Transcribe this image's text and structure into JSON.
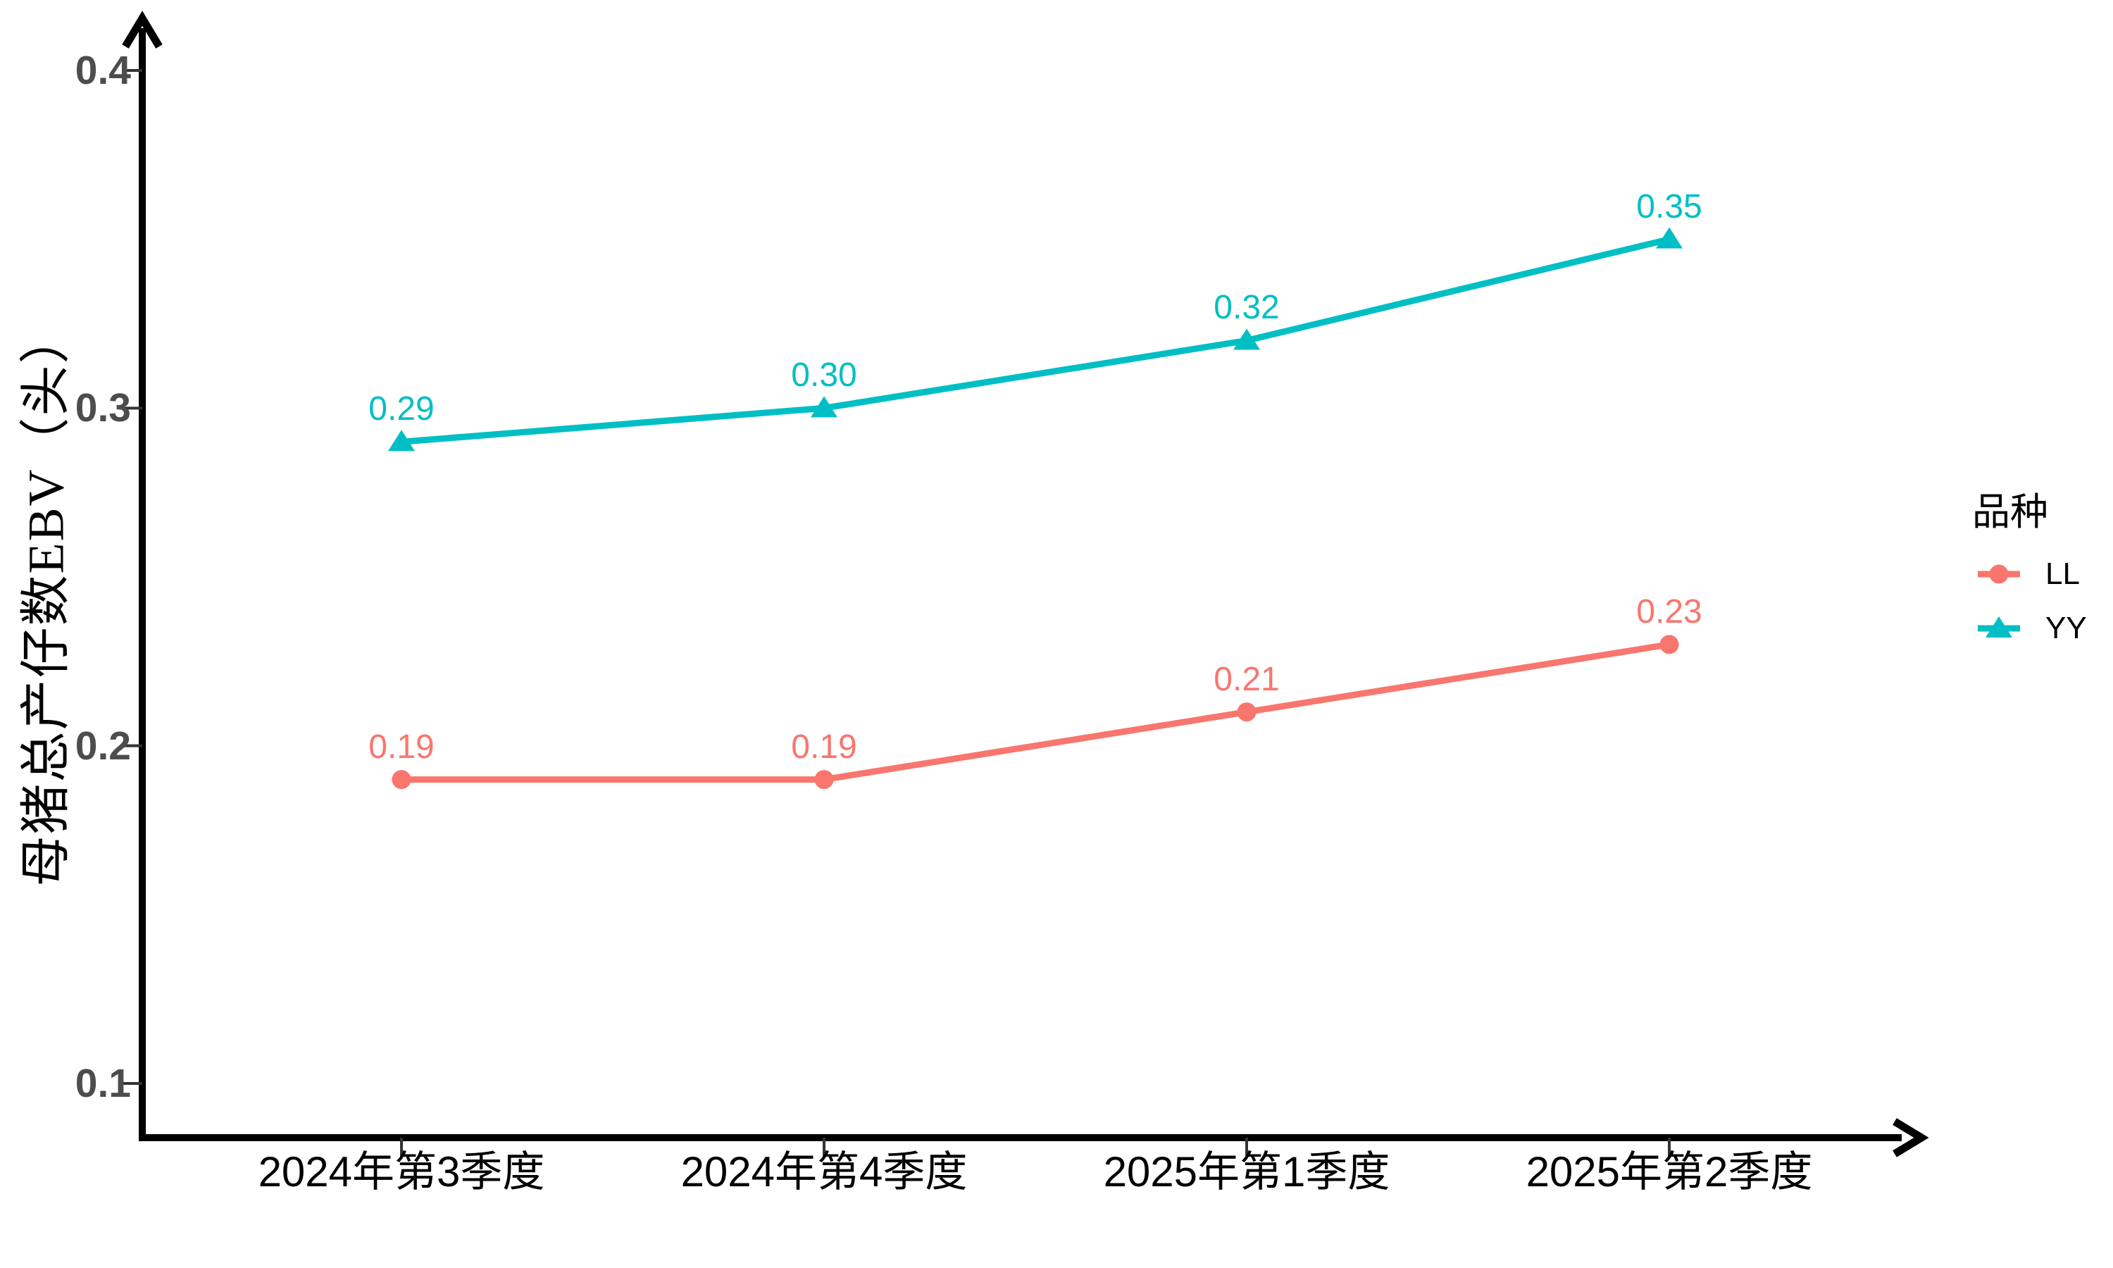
{
  "chart_data": {
    "type": "line",
    "title": "",
    "xlabel": "",
    "ylabel": "母猪总产仔数EBV（头）",
    "categories": [
      "2024年第3季度",
      "2024年第4季度",
      "2025年第1季度",
      "2025年第2季度"
    ],
    "series": [
      {
        "name": "LL",
        "color": "#F8766D",
        "marker": "circle",
        "values": [
          0.19,
          0.19,
          0.21,
          0.23
        ],
        "labels": [
          "0.19",
          "0.19",
          "0.21",
          "0.23"
        ]
      },
      {
        "name": "YY",
        "color": "#00BFC4",
        "marker": "triangle",
        "values": [
          0.29,
          0.3,
          0.32,
          0.35
        ],
        "labels": [
          "0.29",
          "0.30",
          "0.32",
          "0.35"
        ]
      }
    ],
    "y_ticks": [
      {
        "label": "0.4",
        "value": 0.4
      },
      {
        "label": "0.3",
        "value": 0.3
      },
      {
        "label": "0.2",
        "value": 0.2
      },
      {
        "label": "0.1",
        "value": 0.1
      }
    ],
    "ylim": [
      0.1,
      0.4
    ],
    "grid": false,
    "legend_position": "right"
  },
  "legend": {
    "title": "品种"
  },
  "colors": {
    "axis": "#000000",
    "tick_mark": "#333333",
    "y_tick_label": "#4D4D4D",
    "x_tick_label": "#000000",
    "background": "#FFFFFF"
  }
}
